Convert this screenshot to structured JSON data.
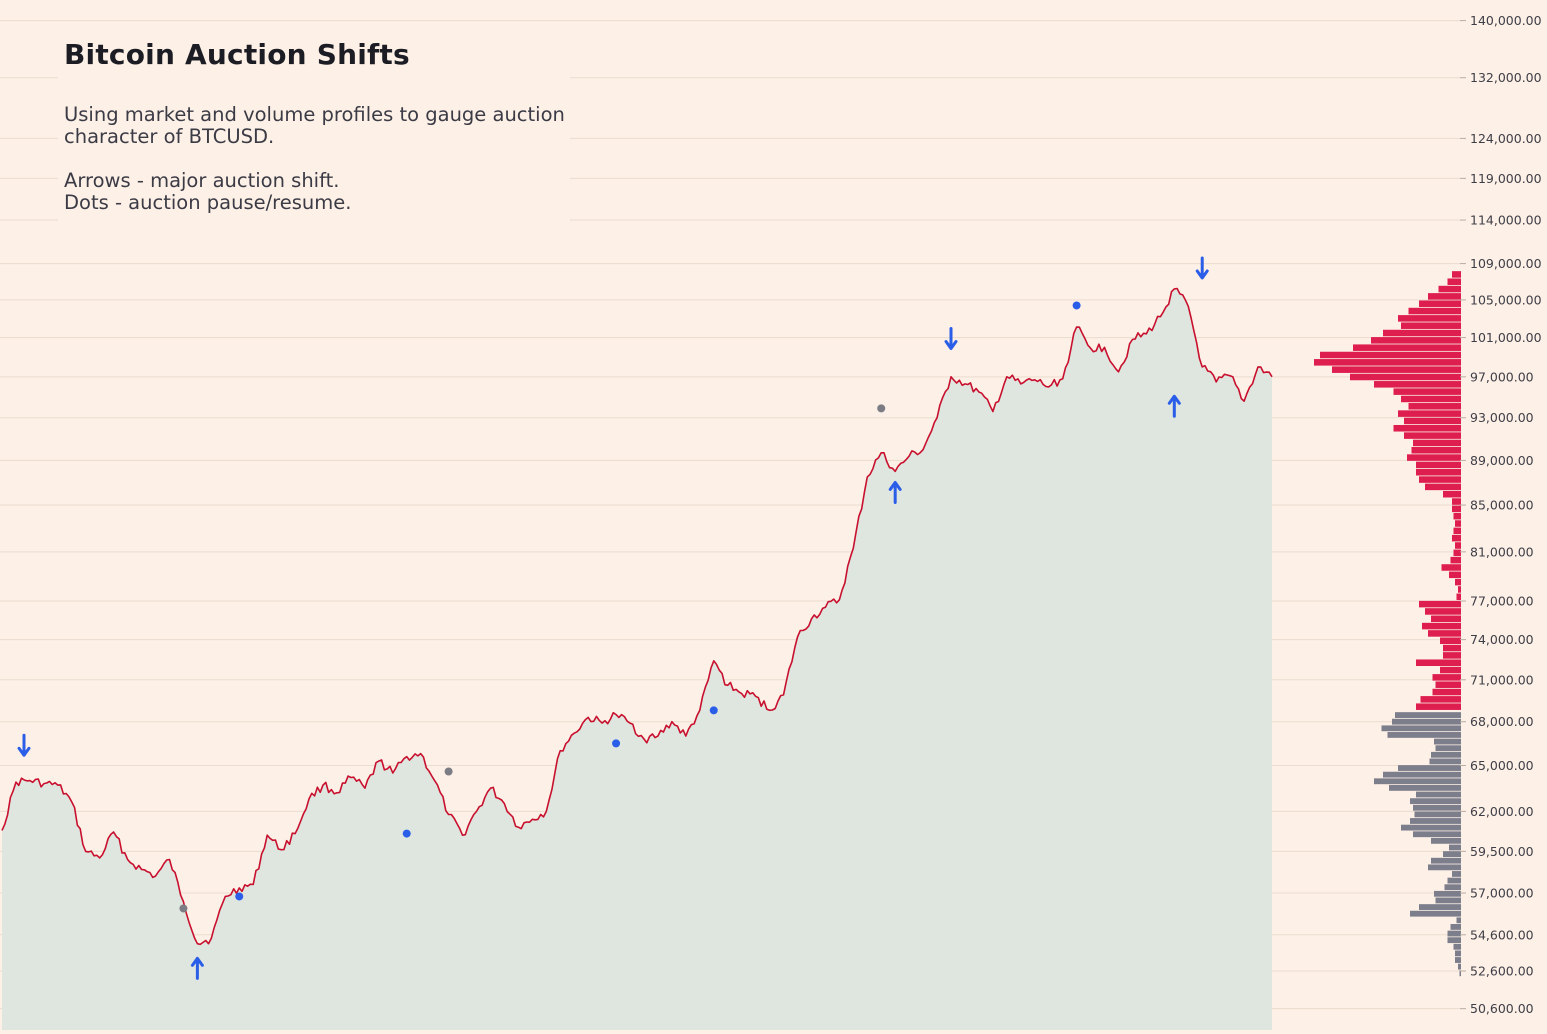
{
  "title": "Bitcoin Auction Shifts",
  "description": {
    "line1": "Using market and volume profiles to gauge auction",
    "line2": "character of BTCUSD.",
    "line3": "Arrows - major auction shift.",
    "line4": "Dots - auction pause/resume."
  },
  "colors": {
    "background": "#fdf0e6",
    "price_line": "#c8102e",
    "area_fill": "#dfe6df",
    "gridline": "#ecdccf",
    "marker_blue": "#2a5ee8",
    "marker_grey": "#7c7c84",
    "profile_upper": "#dd1e4e",
    "profile_lower": "#7d7e8c"
  },
  "chart_data": {
    "type": "line",
    "title": "Bitcoin Auction Shifts",
    "xlabel": "",
    "ylabel": "",
    "y_scale": "log",
    "ylim": [
      49500,
      143000
    ],
    "y_ticks": [
      {
        "value": 140000,
        "label": "140,000.00"
      },
      {
        "value": 132000,
        "label": "132,000.00"
      },
      {
        "value": 124000,
        "label": "124,000.00"
      },
      {
        "value": 119000,
        "label": "119,000.00"
      },
      {
        "value": 114000,
        "label": "114,000.00"
      },
      {
        "value": 109000,
        "label": "109,000.00"
      },
      {
        "value": 105000,
        "label": "105,000.00"
      },
      {
        "value": 101000,
        "label": "101,000.00"
      },
      {
        "value": 97000,
        "label": "97,000.00"
      },
      {
        "value": 93000,
        "label": "93,000.00"
      },
      {
        "value": 89000,
        "label": "89,000.00"
      },
      {
        "value": 85000,
        "label": "85,000.00"
      },
      {
        "value": 81000,
        "label": "81,000.00"
      },
      {
        "value": 77000,
        "label": "77,000.00"
      },
      {
        "value": 74000,
        "label": "74,000.00"
      },
      {
        "value": 71000,
        "label": "71,000.00"
      },
      {
        "value": 68000,
        "label": "68,000.00"
      },
      {
        "value": 65000,
        "label": "65,000.00"
      },
      {
        "value": 62000,
        "label": "62,000.00"
      },
      {
        "value": 59500,
        "label": "59,500.00"
      },
      {
        "value": 57000,
        "label": "57,000.00"
      },
      {
        "value": 54600,
        "label": "54,600.00"
      },
      {
        "value": 52600,
        "label": "52,600.00"
      },
      {
        "value": 50600,
        "label": "50,600.00"
      }
    ],
    "grid": true,
    "series": [
      {
        "values": [
          60800,
          63900,
          64000,
          63800,
          63700,
          62600,
          59500,
          59100,
          60700,
          59000,
          58400,
          58000,
          59000,
          56500,
          54100,
          54400,
          56800,
          57300,
          57500,
          60500,
          59600,
          60600,
          62800,
          63700,
          63200,
          64200,
          63500,
          65300,
          64500,
          65600,
          65800,
          64000,
          61800,
          60500,
          62000,
          63500,
          62500,
          61000,
          61500,
          62000,
          66000,
          67200,
          68300,
          67900,
          68500,
          67900,
          66800,
          67000,
          68000,
          67000,
          68800,
          72400,
          70600,
          70000,
          69800,
          68800,
          69900,
          74200,
          75600,
          76500,
          77100,
          81300,
          87500,
          89700,
          88000,
          89400,
          90000,
          93000,
          97000,
          96300,
          95500,
          93600,
          97000,
          96300,
          96700,
          96000,
          96800,
          102100,
          99900,
          100000,
          97500,
          100800,
          101400,
          103200,
          106200,
          104300,
          98000,
          96500,
          97100,
          94600,
          98000,
          97000
        ]
      }
    ],
    "markers": [
      {
        "kind": "arrow-down",
        "color": "blue",
        "x": 0,
        "y": 66300
      },
      {
        "kind": "arrow-up",
        "color": "blue",
        "x": 14,
        "y": 52800
      },
      {
        "kind": "arrow-down",
        "color": "blue",
        "x": 68,
        "y": 100800
      },
      {
        "kind": "arrow-up",
        "color": "blue",
        "x": 64,
        "y": 86200
      },
      {
        "kind": "arrow-up",
        "color": "blue",
        "x": 84,
        "y": 94200
      },
      {
        "kind": "arrow-down",
        "color": "blue",
        "x": 86,
        "y": 108400
      },
      {
        "kind": "dot",
        "color": "grey",
        "x": 13,
        "y": 56100
      },
      {
        "kind": "dot",
        "color": "blue",
        "x": 17,
        "y": 56800
      },
      {
        "kind": "dot",
        "color": "blue",
        "x": 29,
        "y": 60600
      },
      {
        "kind": "dot",
        "color": "grey",
        "x": 32,
        "y": 64600
      },
      {
        "kind": "dot",
        "color": "blue",
        "x": 44,
        "y": 66500
      },
      {
        "kind": "dot",
        "color": "blue",
        "x": 51,
        "y": 68800
      },
      {
        "kind": "dot",
        "color": "grey",
        "x": 63,
        "y": 93900
      },
      {
        "kind": "dot",
        "color": "blue",
        "x": 77,
        "y": 104400
      }
    ],
    "volume_profile": {
      "upper_price_range": [
        68800,
        108200
      ],
      "upper_relative_volume": [
        0.06,
        0.09,
        0.15,
        0.22,
        0.28,
        0.35,
        0.42,
        0.4,
        0.52,
        0.6,
        0.72,
        0.94,
        0.98,
        0.86,
        0.74,
        0.58,
        0.45,
        0.4,
        0.35,
        0.42,
        0.38,
        0.45,
        0.38,
        0.32,
        0.33,
        0.36,
        0.3,
        0.3,
        0.28,
        0.24,
        0.12,
        0.06,
        0.06,
        0.05,
        0.04,
        0.05,
        0.06,
        0.04,
        0.05,
        0.07,
        0.13,
        0.08,
        0.04,
        0.02,
        0.03,
        0.28,
        0.24,
        0.2,
        0.26,
        0.22,
        0.14,
        0.12,
        0.12,
        0.3,
        0.14,
        0.19,
        0.17,
        0.19,
        0.27,
        0.3
      ],
      "lower_price_range": [
        52300,
        68700
      ],
      "lower_relative_volume": [
        0.44,
        0.46,
        0.53,
        0.49,
        0.18,
        0.17,
        0.2,
        0.21,
        0.42,
        0.52,
        0.58,
        0.48,
        0.3,
        0.34,
        0.32,
        0.31,
        0.34,
        0.4,
        0.32,
        0.2,
        0.08,
        0.12,
        0.2,
        0.22,
        0.06,
        0.09,
        0.11,
        0.18,
        0.17,
        0.28,
        0.34,
        0.03,
        0.07,
        0.09,
        0.09,
        0.05,
        0.04,
        0.04,
        0.02,
        0.01
      ]
    }
  }
}
